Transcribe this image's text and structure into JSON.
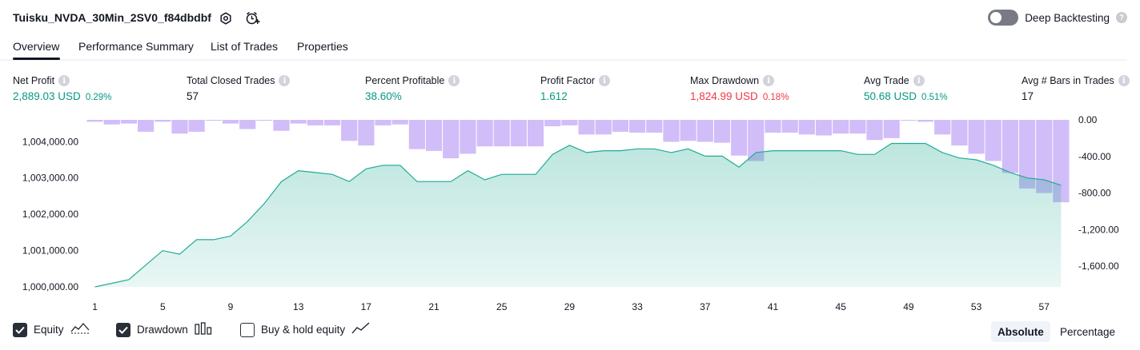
{
  "header": {
    "title": "Tuisku_NVDA_30Min_2SV0_f84dbdbf",
    "deep_backtesting_label": "Deep Backtesting",
    "help_glyph": "?"
  },
  "tabs": [
    {
      "label": "Overview",
      "active": true
    },
    {
      "label": "Performance Summary",
      "active": false
    },
    {
      "label": "List of Trades",
      "active": false
    },
    {
      "label": "Properties",
      "active": false
    }
  ],
  "stats": [
    {
      "label": "Net Profit",
      "value": "2,889.03 USD",
      "pct": "0.29%",
      "color": "green"
    },
    {
      "label": "Total Closed Trades",
      "value": "57",
      "pct": "",
      "color": "dark"
    },
    {
      "label": "Percent Profitable",
      "value": "38.60%",
      "pct": "",
      "color": "green"
    },
    {
      "label": "Profit Factor",
      "value": "1.612",
      "pct": "",
      "color": "green"
    },
    {
      "label": "Max Drawdown",
      "value": "1,824.99 USD",
      "pct": "0.18%",
      "color": "red"
    },
    {
      "label": "Avg Trade",
      "value": "50.68 USD",
      "pct": "0.51%",
      "color": "green"
    },
    {
      "label": "Avg # Bars in Trades",
      "value": "17",
      "pct": "",
      "color": "dark"
    }
  ],
  "info_glyph": "i",
  "chart_data": {
    "type": "area",
    "x": [
      1,
      2,
      3,
      4,
      5,
      6,
      7,
      8,
      9,
      10,
      11,
      12,
      13,
      14,
      15,
      16,
      17,
      18,
      19,
      20,
      21,
      22,
      23,
      24,
      25,
      26,
      27,
      28,
      29,
      30,
      31,
      32,
      33,
      34,
      35,
      36,
      37,
      38,
      39,
      40,
      41,
      42,
      43,
      44,
      45,
      46,
      47,
      48,
      49,
      50,
      51,
      52,
      53,
      54,
      55,
      56,
      57,
      58
    ],
    "x_ticks": [
      "1",
      "5",
      "9",
      "13",
      "17",
      "21",
      "25",
      "29",
      "33",
      "37",
      "41",
      "45",
      "49",
      "53",
      "57"
    ],
    "series": [
      {
        "axis": "left",
        "color": "#22ab94",
        "values": [
          1000000,
          1000100,
          1000200,
          1000600,
          1001000,
          1000900,
          1001300,
          1001300,
          1001400,
          1001800,
          1002300,
          1002900,
          1003200,
          1003150,
          1003100,
          1002900,
          1003250,
          1003350,
          1003350,
          1002900,
          1002900,
          1002900,
          1003200,
          1002950,
          1003100,
          1003100,
          1003100,
          1003650,
          1003900,
          1003700,
          1003750,
          1003750,
          1003800,
          1003800,
          1003700,
          1003800,
          1003600,
          1003600,
          1003300,
          1003700,
          1003750,
          1003750,
          1003750,
          1003750,
          1003750,
          1003650,
          1003650,
          1003950,
          1003950,
          1003950,
          1003700,
          1003550,
          1003500,
          1003350,
          1003150,
          1003000,
          1002950,
          1002800
        ]
      },
      {
        "axis": "right",
        "color": "#c9b1f7",
        "values": [
          -20,
          -50,
          -40,
          -130,
          -20,
          -150,
          -130,
          -10,
          -40,
          -100,
          -10,
          -120,
          -40,
          -60,
          -60,
          -230,
          -280,
          -60,
          -50,
          -320,
          -340,
          -420,
          -370,
          -290,
          -290,
          -290,
          -290,
          -70,
          -60,
          -160,
          -160,
          -130,
          -140,
          -140,
          -240,
          -230,
          -240,
          -250,
          -390,
          -450,
          -140,
          -140,
          -160,
          -170,
          -150,
          -150,
          -220,
          -200,
          0,
          -20,
          -160,
          -280,
          -370,
          -450,
          -580,
          -750,
          -800,
          -900
        ]
      }
    ],
    "ylim_left": [
      1000000,
      1004600
    ],
    "yticks_left": [
      "1,000,000.00",
      "1,001,000.00",
      "1,002,000.00",
      "1,003,000.00",
      "1,004,000.00"
    ],
    "ylim_right": [
      -1824.99,
      0
    ],
    "yticks_right": [
      "0.00",
      "-400.00",
      "-800.00",
      "-1,200.00",
      "-1,600.00"
    ],
    "grid": false
  },
  "footer": {
    "checkboxes": [
      {
        "label": "Equity",
        "checked": true,
        "icon": "equity-line-icon"
      },
      {
        "label": "Drawdown",
        "checked": true,
        "icon": "drawdown-bars-icon"
      },
      {
        "label": "Buy & hold equity",
        "checked": false,
        "icon": "buy-hold-line-icon"
      }
    ],
    "modes": [
      {
        "label": "Absolute",
        "active": true
      },
      {
        "label": "Percentage",
        "active": false
      }
    ]
  },
  "colors": {
    "green": "#089981",
    "red": "#f23645",
    "dark": "#131722",
    "equity_line": "#22ab94",
    "drawdown_bar": "#c9b1f7"
  }
}
